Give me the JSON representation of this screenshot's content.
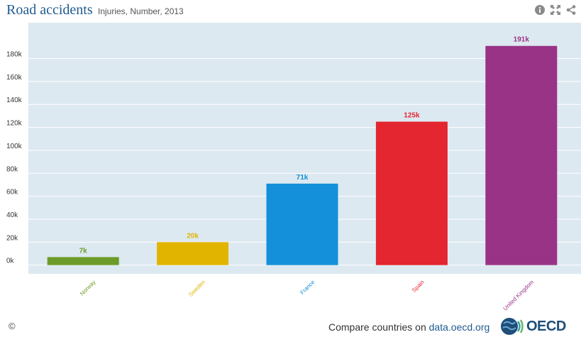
{
  "header": {
    "title": "Road accidents",
    "subtitle": "Injuries, Number, 2013",
    "tools": [
      {
        "name": "info-icon"
      },
      {
        "name": "fullscreen-icon"
      },
      {
        "name": "share-icon"
      }
    ]
  },
  "footer": {
    "copyright": "©",
    "compare_prefix": "Compare countries on ",
    "compare_link": "data.oecd.org",
    "logo_text": "OECD"
  },
  "chart_data": {
    "type": "bar",
    "categories": [
      "Norway",
      "Sweden",
      "France",
      "Spain",
      "United Kingdom"
    ],
    "values": [
      7000,
      20000,
      71000,
      125000,
      191000
    ],
    "data_labels": [
      "7k",
      "20k",
      "71k",
      "125k",
      "191k"
    ],
    "colors": [
      "#6d9b2a",
      "#e1b400",
      "#1390d9",
      "#e3262f",
      "#993385"
    ],
    "yticks": [
      0,
      20000,
      40000,
      60000,
      80000,
      100000,
      120000,
      140000,
      160000,
      180000
    ],
    "ytick_labels": [
      "0k",
      "20k",
      "40k",
      "60k",
      "80k",
      "100k",
      "120k",
      "140k",
      "160k",
      "180k"
    ],
    "ylim": [
      -7000,
      210000
    ],
    "grid": true,
    "plot_background": "#dde9f1",
    "title": "Road accidents",
    "xlabel": "",
    "ylabel": ""
  }
}
